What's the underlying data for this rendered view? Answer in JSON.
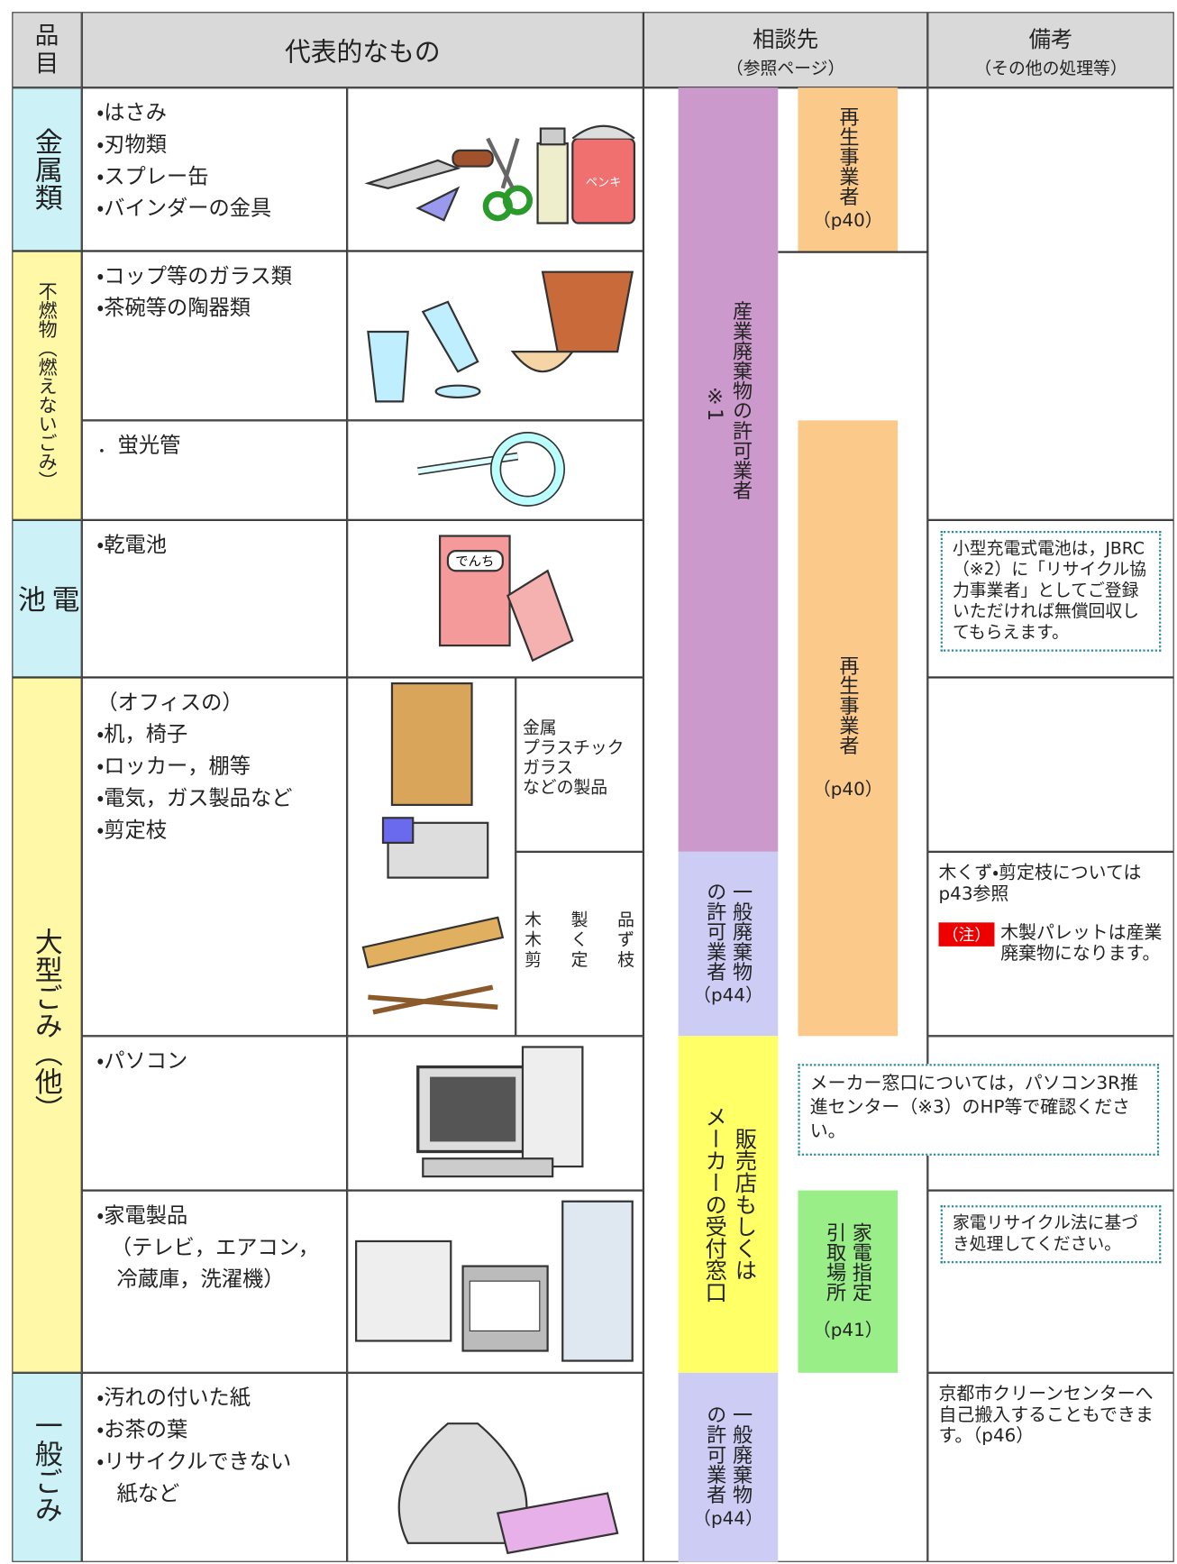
{
  "header": {
    "item": "品目",
    "representative": "代表的なもの",
    "consultation": "相談先",
    "consultation_note": "（参照ページ）",
    "remarks": "備考",
    "remarks_note": "（その他の処理等）"
  },
  "categories": [
    "金属類",
    "不燃物（燃えないごみ）",
    "電池",
    "大型ごみ（他）",
    "一般ごみ"
  ],
  "items": [
    [
      "・はさみ",
      "・刃物類",
      "・スプレー缶",
      "・バインダーの金具"
    ],
    [
      "・コップ等のガラス類",
      "・茶碗等の陶器類"
    ],
    [
      "．蛍光管"
    ],
    [
      "・乾電池"
    ],
    [
      "（オフィスの）",
      "・机，椅子",
      "・ロッカー，棚等",
      "・電気，ガス製品など",
      "・剪定枝"
    ],
    [
      "・パソコン"
    ],
    [
      "・家電製品",
      "（テレビ，エアコン，",
      "冷蔵庫，洗濯機）"
    ],
    [
      "・汚れの付いた紙",
      "・お茶の葉",
      "・リサイクルできない",
      "紙など"
    ]
  ],
  "materials": [
    [
      "金属",
      "プラスチック",
      "ガラス",
      "などの製品"
    ],
    [
      "木製品",
      "木くず",
      "剪定枝"
    ]
  ],
  "illustration_labels": [
    "ペンキ",
    "でんち"
  ],
  "consultation": [
    {
      "label": "産業廃棄物の許可業者",
      "note": "※1"
    },
    {
      "label": "再生事業者",
      "page": "（p40）"
    },
    {
      "label": "再生事業者",
      "page": "（p40）"
    },
    {
      "label": [
        "一般廃棄物",
        "の許可業者"
      ],
      "page": "（p44）"
    },
    {
      "label": [
        "販売店もしくは",
        "メーカーの受付窓口"
      ]
    },
    {
      "label": [
        "家電指定",
        "引取場所"
      ],
      "page": "（p41）"
    },
    {
      "label": [
        "一般廃棄物",
        "の許可業者"
      ],
      "page": "（p44）"
    }
  ],
  "remarks": {
    "battery": "小型充電式電池は，JBRC（※2）に「リサイクル協力事業者」としてご登録いただければ無償回収してもらえます。",
    "wood": "木くず・剪定枝についてはp43参照",
    "caution_badge": "（注）",
    "caution": "木製パレットは産業廃棄物になります。",
    "pc": "メーカー窓口については，パソコン3R推進センター（※3）のHP等で確認ください。",
    "appliance": "家電リサイクル法に基づき処理してください。",
    "general": "京都市クリーンセンターへ自己搬入することもできます。（p46）"
  }
}
